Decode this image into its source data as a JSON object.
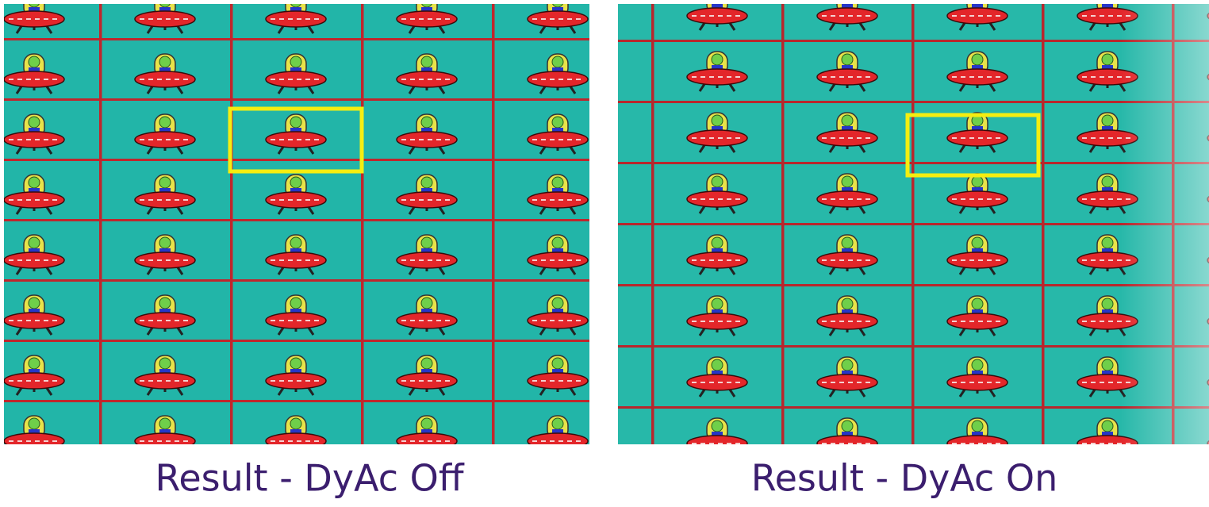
{
  "panels": [
    {
      "caption": "Result - DyAc Off"
    },
    {
      "caption": "Result - DyAc On"
    }
  ]
}
